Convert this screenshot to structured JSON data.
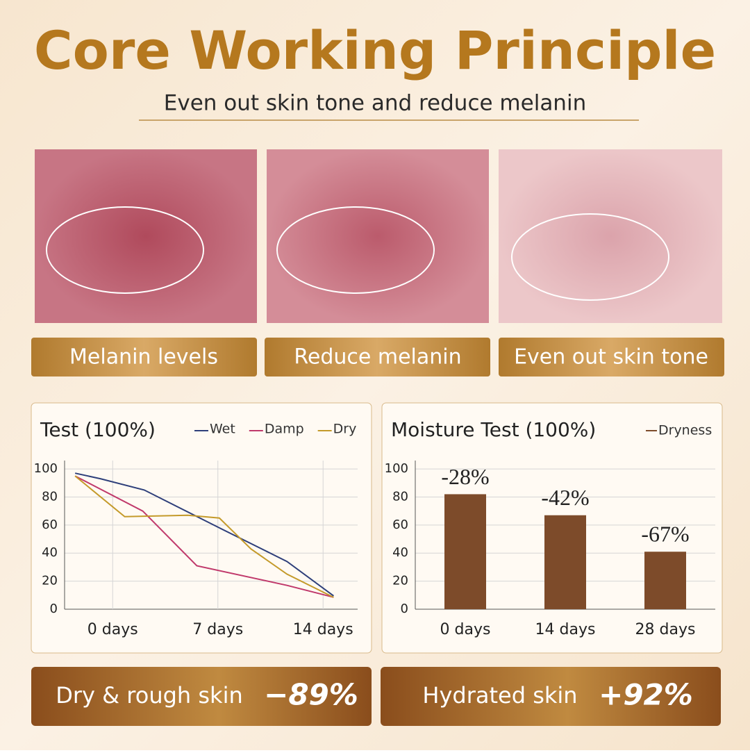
{
  "header": {
    "title": "Core Working Principle",
    "subtitle": "Even out skin tone and reduce melanin"
  },
  "photos": [
    {
      "label": "Melanin levels"
    },
    {
      "label": "Reduce melanin"
    },
    {
      "label": "Even out skin tone"
    }
  ],
  "chart_data": [
    {
      "type": "line",
      "title": "Test (100%)",
      "xlim": [
        -3.2,
        16.3
      ],
      "xticks": [
        {
          "value": 0,
          "label": "0 days"
        },
        {
          "value": 7,
          "label": "7 days"
        },
        {
          "value": 14,
          "label": "14 days"
        }
      ],
      "ylim": [
        0,
        106
      ],
      "yticks": [
        0,
        20,
        40,
        60,
        80,
        100
      ],
      "grid": true,
      "series": [
        {
          "name": "Wet",
          "color": "#2e3f7a",
          "x": [
            -2.5,
            -0.8,
            2.1,
            7.1,
            11.6,
            14.7
          ],
          "values": [
            97,
            93,
            85,
            58,
            34,
            9.5
          ]
        },
        {
          "name": "Damp",
          "color": "#c0396b",
          "x": [
            -2.5,
            2.0,
            5.6,
            11.6,
            14.7
          ],
          "values": [
            95,
            70,
            31,
            17,
            8.5
          ]
        },
        {
          "name": "Dry",
          "color": "#c49a2a",
          "x": [
            -2.5,
            0.8,
            5.0,
            7.1,
            9.2,
            11.6,
            14.7
          ],
          "values": [
            95,
            66,
            67,
            65,
            43,
            25,
            8.5
          ]
        }
      ]
    },
    {
      "type": "bar",
      "title": "Moisture Test (100%)",
      "categories": [
        "0 days",
        "14 days",
        "28 days"
      ],
      "ylim": [
        0,
        106
      ],
      "yticks": [
        0,
        20,
        40,
        60,
        80,
        100
      ],
      "grid": true,
      "series": [
        {
          "name": "Dryness",
          "color": "#7d4b2a",
          "values": [
            82,
            67,
            41
          ]
        }
      ],
      "annotations": [
        "-28%",
        "-42%",
        "-67%"
      ]
    }
  ],
  "banners": [
    {
      "text": "Dry & rough skin",
      "value": "−89%"
    },
    {
      "text": "Hydrated skin",
      "value": "+92%"
    }
  ]
}
